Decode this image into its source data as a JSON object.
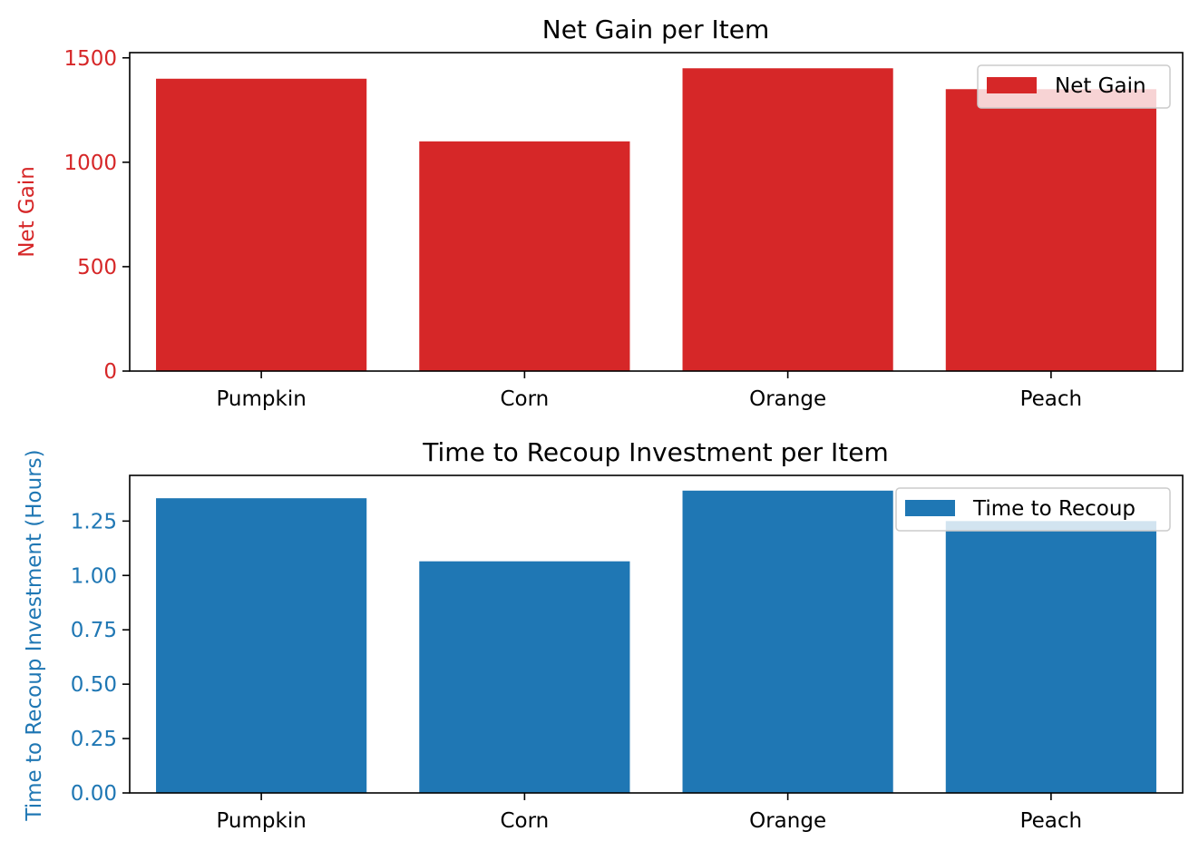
{
  "colors": {
    "net_gain": "#d62728",
    "recoup": "#1f77b4",
    "axis": "#000000",
    "legend_border": "#cccccc"
  },
  "chart_data": [
    {
      "type": "bar",
      "title": "Net Gain per Item",
      "xlabel": "",
      "ylabel": "Net Gain",
      "categories": [
        "Pumpkin",
        "Corn",
        "Orange",
        "Peach"
      ],
      "series": [
        {
          "name": "Net Gain",
          "values": [
            1400,
            1100,
            1450,
            1350
          ]
        }
      ],
      "ylim": [
        0,
        1525
      ],
      "yticks": [
        0,
        500,
        1000,
        1500
      ],
      "ytick_labels": [
        "0",
        "500",
        "1000",
        "1500"
      ],
      "legend": "top-right",
      "grid": false
    },
    {
      "type": "bar",
      "title": "Time to Recoup Investment per Item",
      "xlabel": "",
      "ylabel": "Time to Recoup Investment (Hours)",
      "categories": [
        "Pumpkin",
        "Corn",
        "Orange",
        "Peach"
      ],
      "series": [
        {
          "name": "Time to Recoup",
          "values": [
            1.355,
            1.065,
            1.39,
            1.25
          ]
        }
      ],
      "ylim": [
        0,
        1.46
      ],
      "yticks": [
        0,
        0.25,
        0.5,
        0.75,
        1.0,
        1.25
      ],
      "ytick_labels": [
        "0.00",
        "0.25",
        "0.50",
        "0.75",
        "1.00",
        "1.25"
      ],
      "legend": "top-right",
      "grid": false
    }
  ]
}
